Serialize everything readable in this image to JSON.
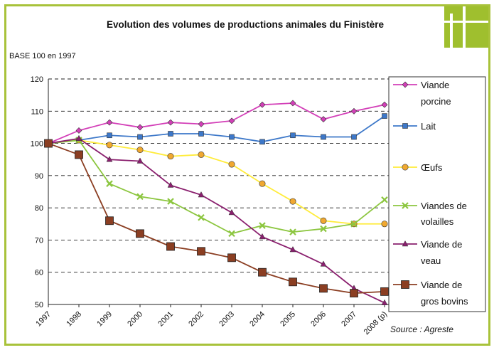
{
  "chart_data": {
    "type": "line",
    "title": "Evolution des volumes de productions animales du Finistère",
    "base_label": "BASE 100 en 1997",
    "source": "Source :  Agreste",
    "x": [
      "1997",
      "1998",
      "1999",
      "2000",
      "2001",
      "2002",
      "2003",
      "2004",
      "2005",
      "2006",
      "2007",
      "2008 (p)"
    ],
    "ylim": [
      50,
      120
    ],
    "yticks": [
      50,
      60,
      70,
      80,
      90,
      100,
      110,
      120
    ],
    "grid": true,
    "legend_position": "right",
    "series": [
      {
        "name_lines": [
          "Viande",
          "porcine"
        ],
        "color": "#d33fb8",
        "marker": "diamond",
        "values": [
          100,
          104,
          106.5,
          105,
          106.5,
          106,
          107,
          112,
          112.5,
          107.5,
          110,
          112
        ]
      },
      {
        "name_lines": [
          "Lait"
        ],
        "color": "#3d78c9",
        "marker": "square",
        "values": [
          100,
          101,
          102.5,
          102,
          103,
          103,
          102,
          100.5,
          102.5,
          102,
          102,
          108.5
        ]
      },
      {
        "name_lines": [
          "Œufs"
        ],
        "color": "#ffec3a",
        "marker_color": "#f0a830",
        "marker": "circle",
        "values": [
          100,
          101,
          99.5,
          98,
          96,
          96.5,
          93.5,
          87.5,
          82,
          76,
          75,
          75
        ]
      },
      {
        "name_lines": [
          "Viandes de",
          "volailles"
        ],
        "color": "#8cc63f",
        "marker": "x",
        "values": [
          100,
          101,
          87.5,
          83.5,
          82,
          77,
          72,
          74.5,
          72.5,
          73.5,
          75,
          82.5
        ]
      },
      {
        "name_lines": [
          "Viande de",
          "veau"
        ],
        "color": "#8a1f6e",
        "marker": "triangle",
        "values": [
          100,
          101.5,
          95,
          94.5,
          87,
          84,
          78.5,
          71,
          67,
          62.5,
          55,
          50.5
        ]
      },
      {
        "name_lines": [
          "Viande de",
          "gros bovins"
        ],
        "color": "#8b3e22",
        "marker": "bigsquare",
        "values": [
          100,
          96.5,
          76,
          72,
          68,
          66.5,
          64.5,
          60,
          57,
          55,
          53.5,
          54
        ]
      }
    ]
  }
}
